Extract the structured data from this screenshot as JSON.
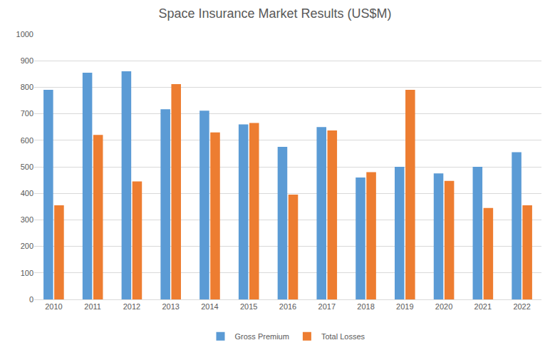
{
  "chart_data": {
    "type": "bar",
    "title": "Space Insurance Market Results (US$M)",
    "categories": [
      "2010",
      "2011",
      "2012",
      "2013",
      "2014",
      "2015",
      "2016",
      "2017",
      "2018",
      "2019",
      "2020",
      "2021",
      "2022"
    ],
    "series": [
      {
        "name": "Gross Premium",
        "color": "#5b9bd5",
        "values": [
          790,
          855,
          860,
          717,
          712,
          660,
          575,
          650,
          460,
          500,
          475,
          500,
          555
        ]
      },
      {
        "name": "Total Losses",
        "color": "#ed7d31",
        "values": [
          355,
          620,
          445,
          812,
          630,
          665,
          395,
          637,
          480,
          790,
          447,
          345,
          355
        ]
      }
    ],
    "ylim": [
      0,
      1000
    ],
    "yticks": [
      0,
      100,
      200,
      300,
      400,
      500,
      600,
      700,
      800,
      900,
      1000
    ],
    "grid": true,
    "legend": "bottom"
  }
}
